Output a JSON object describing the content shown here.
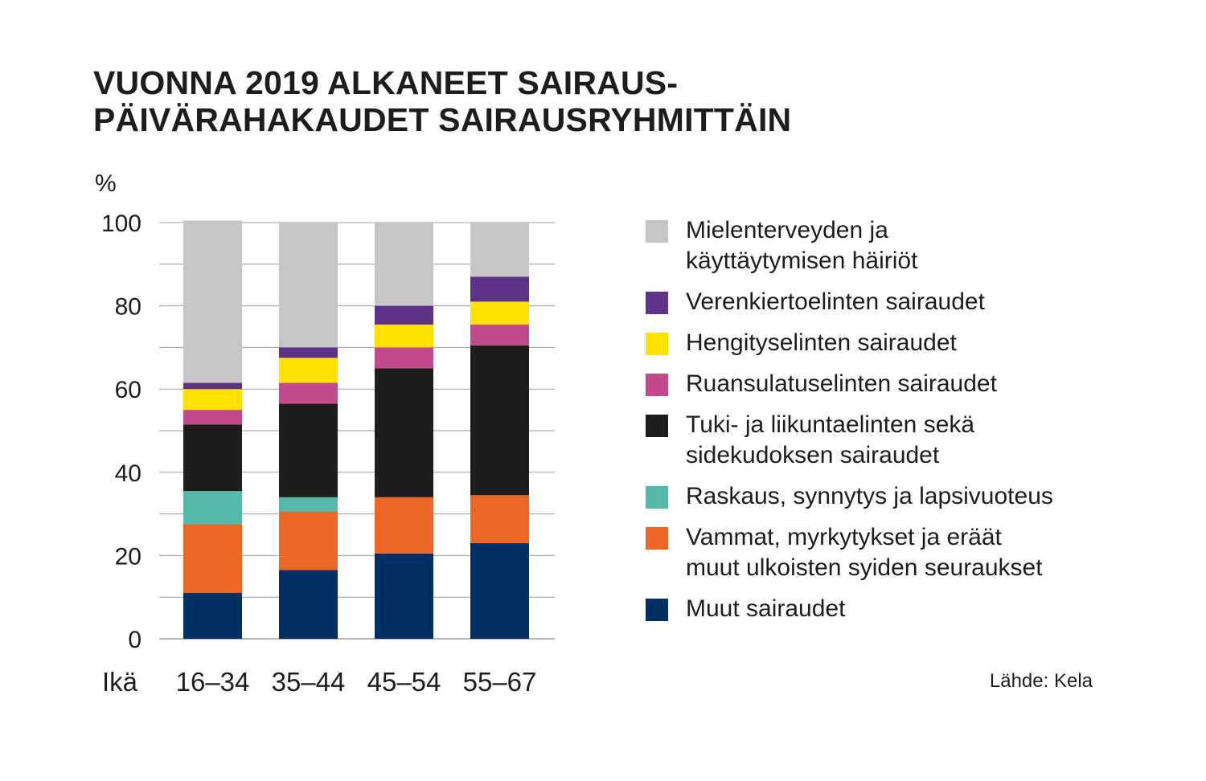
{
  "title_lines": [
    "VUONNA 2019 ALKANEET SAIRAUS-",
    "PÄIVÄRAHAKAUDET SAIRAUSRYHMITTÄIN"
  ],
  "source": "Lähde: Kela",
  "chart_data": {
    "type": "bar",
    "stacked": true,
    "ylabel": "%",
    "xlabel": "Ikä",
    "ylim": [
      0,
      100
    ],
    "yticks": [
      0,
      20,
      40,
      60,
      80,
      100
    ],
    "ytick_labels": [
      "0",
      "20",
      "40",
      "60",
      "80",
      "100"
    ],
    "grid": true,
    "categories": [
      "16–34",
      "35–44",
      "45–54",
      "55–67"
    ],
    "series": [
      {
        "name": "Muut sairaudet",
        "color": "#002f66",
        "values": [
          11,
          16.5,
          20.5,
          23
        ]
      },
      {
        "name": "Vammat, myrkytykset ja eräät muut ulkoisten syiden seuraukset",
        "color": "#ec6626",
        "values": [
          16.5,
          14,
          13.5,
          11.5
        ]
      },
      {
        "name": "Raskaus, synnytys ja lapsivuoteus",
        "color": "#55b9aa",
        "values": [
          8,
          3.5,
          0,
          0
        ]
      },
      {
        "name": "Tuki- ja liikuntaelinten sekä sidekudoksen sairaudet",
        "color": "#1d1d1b",
        "values": [
          16,
          22.5,
          31,
          36
        ]
      },
      {
        "name": "Ruansulatuselinten sairaudet",
        "color": "#c3498c",
        "values": [
          3.5,
          5,
          5,
          5
        ]
      },
      {
        "name": "Hengityselinten sairaudet",
        "color": "#ffe200",
        "values": [
          5,
          6,
          5.5,
          5.5
        ]
      },
      {
        "name": "Verenkiertoelinten sairaudet",
        "color": "#5c3389",
        "values": [
          1.5,
          2.5,
          4.5,
          6
        ]
      },
      {
        "name": "Mielenterveyden ja käyttäytymisen häiriöt",
        "color": "#c6c6c6",
        "values": [
          39,
          30,
          20,
          13
        ]
      }
    ]
  },
  "legend": [
    {
      "lines": [
        "Mielenterveyden ja",
        "käyttäytymisen häiriöt"
      ],
      "color": "#c6c6c6"
    },
    {
      "lines": [
        "Verenkiertoelinten sairaudet"
      ],
      "color": "#5c3389"
    },
    {
      "lines": [
        "Hengityselinten sairaudet"
      ],
      "color": "#ffe200"
    },
    {
      "lines": [
        "Ruansulatuselinten sairaudet"
      ],
      "color": "#c3498c"
    },
    {
      "lines": [
        "Tuki- ja liikuntaelinten sekä",
        "sidekudoksen sairaudet"
      ],
      "color": "#1d1d1b"
    },
    {
      "lines": [
        "Raskaus, synnytys ja lapsivuoteus"
      ],
      "color": "#55b9aa"
    },
    {
      "lines": [
        "Vammat, myrkytykset ja eräät",
        "muut ulkoisten syiden seuraukset"
      ],
      "color": "#ec6626"
    },
    {
      "lines": [
        "Muut sairaudet"
      ],
      "color": "#002f66"
    }
  ]
}
